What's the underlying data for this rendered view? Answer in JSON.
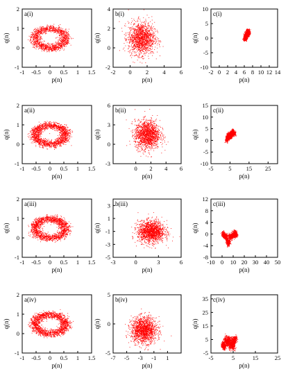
{
  "chart_data": [
    {
      "id": "a1",
      "type": "scatter",
      "panel_label": "a(i)",
      "xlabel": "p(n)",
      "ylabel": "q(n)",
      "xlim": [
        -1,
        1.5
      ],
      "ylim": [
        -1,
        2
      ],
      "xticks": [
        "-1",
        "-0.5",
        "0",
        "0.5",
        "1",
        "1.5"
      ],
      "yticks": [
        "-1",
        "0",
        "1",
        "2"
      ],
      "color": "#ff0000",
      "shape": "ring",
      "center": [
        0.0,
        0.5
      ],
      "radius": [
        0.55,
        0.5
      ],
      "points": 1500
    },
    {
      "id": "b1",
      "type": "scatter",
      "panel_label": "b(i)",
      "xlabel": "p(n)",
      "ylabel": "q(n)",
      "xlim": [
        -2,
        6
      ],
      "ylim": [
        -2,
        4
      ],
      "xticks": [
        "-2",
        "0",
        "2",
        "4",
        "6"
      ],
      "yticks": [
        "-2",
        "0",
        "2",
        "4"
      ],
      "color": "#ff0000",
      "shape": "cloud",
      "center": [
        1.3,
        1.0
      ],
      "radius": [
        1.4,
        1.5
      ],
      "points": 1500
    },
    {
      "id": "c1",
      "type": "scatter",
      "panel_label": "c(i)",
      "xlabel": "p(n)",
      "ylabel": "q(n)",
      "xlim": [
        -2,
        14
      ],
      "ylim": [
        -10,
        10
      ],
      "xticks": [
        "-2",
        "0",
        "2",
        "4",
        "6",
        "8",
        "10",
        "12",
        "14"
      ],
      "yticks": [
        "-10",
        "-5",
        "0",
        "5",
        "10"
      ],
      "color": "#ff0000",
      "shape": "walk",
      "start": [
        6,
        0
      ],
      "spread": [
        3.5,
        5
      ],
      "points": 1500
    },
    {
      "id": "a2",
      "type": "scatter",
      "panel_label": "a(ii)",
      "xlabel": "p(n)",
      "ylabel": "q(n)",
      "xlim": [
        -1,
        1.5
      ],
      "ylim": [
        -1,
        2
      ],
      "xticks": [
        "-1",
        "-0.5",
        "0",
        "0.5",
        "1",
        "1.5"
      ],
      "yticks": [
        "-1",
        "0",
        "1",
        "2"
      ],
      "color": "#ff0000",
      "shape": "ring",
      "center": [
        0.0,
        0.5
      ],
      "radius": [
        0.55,
        0.5
      ],
      "points": 1800
    },
    {
      "id": "b2",
      "type": "scatter",
      "panel_label": "b(ii)",
      "xlabel": "p(n)",
      "ylabel": "q(n)",
      "xlim": [
        -3,
        6
      ],
      "ylim": [
        -3,
        6
      ],
      "xticks": [
        "0",
        "2",
        "4",
        "6"
      ],
      "yticks": [
        "-3",
        "0",
        "3",
        "6"
      ],
      "color": "#ff0000",
      "shape": "cloud",
      "center": [
        1.5,
        1.5
      ],
      "radius": [
        1.5,
        2.0
      ],
      "points": 1600
    },
    {
      "id": "c2",
      "type": "scatter",
      "panel_label": "c(ii)",
      "xlabel": "p(n)",
      "ylabel": "q(n)",
      "xlim": [
        -5,
        30
      ],
      "ylim": [
        -10,
        15
      ],
      "xticks": [
        "-5",
        "5",
        "15",
        "25"
      ],
      "yticks": [
        "-10",
        "-5",
        "0",
        "5",
        "10",
        "15"
      ],
      "color": "#ff0000",
      "shape": "walk",
      "start": [
        3,
        0
      ],
      "spread": [
        12,
        6
      ],
      "points": 1600
    },
    {
      "id": "a3",
      "type": "scatter",
      "panel_label": "a(iii)",
      "xlabel": "p(n)",
      "ylabel": "q(n)",
      "xlim": [
        -1,
        1.5
      ],
      "ylim": [
        -1,
        2
      ],
      "xticks": [
        "-1",
        "-0.5",
        "0",
        "0.5",
        "1",
        "1.5"
      ],
      "yticks": [
        "-1",
        "0",
        "1",
        "2"
      ],
      "color": "#ff0000",
      "shape": "ring",
      "center": [
        0.0,
        0.5
      ],
      "radius": [
        0.55,
        0.5
      ],
      "points": 1800
    },
    {
      "id": "b3",
      "type": "scatter",
      "panel_label": "b(iii)",
      "xlabel": "p(n)",
      "ylabel": "q(n)",
      "xlim": [
        -3,
        6
      ],
      "ylim": [
        -5,
        4
      ],
      "xticks": [
        "-3",
        "0",
        "3",
        "6"
      ],
      "yticks": [
        "-5",
        "-3",
        "-1",
        "1",
        "3"
      ],
      "color": "#ff0000",
      "shape": "cloud",
      "center": [
        2.0,
        -1.0
      ],
      "radius": [
        1.6,
        1.5
      ],
      "points": 1600
    },
    {
      "id": "c3",
      "type": "scatter",
      "panel_label": "c(iii)",
      "xlabel": "p(n)",
      "ylabel": "q(n)",
      "xlim": [
        -10,
        50
      ],
      "ylim": [
        -8,
        12
      ],
      "xticks": [
        "-10",
        "0",
        "10",
        "20",
        "30",
        "40",
        "50"
      ],
      "yticks": [
        "-8",
        "-4",
        "0",
        "4",
        "8",
        "12"
      ],
      "color": "#ff0000",
      "shape": "walk",
      "start": [
        0,
        0
      ],
      "spread": [
        45,
        6
      ],
      "points": 1600
    },
    {
      "id": "a4",
      "type": "scatter",
      "panel_label": "a(iv)",
      "xlabel": "p(n)",
      "ylabel": "q(n)",
      "xlim": [
        -1,
        1.5
      ],
      "ylim": [
        -1,
        2
      ],
      "xticks": [
        "-1",
        "-0.5",
        "0",
        "0.5",
        "1",
        "1.5"
      ],
      "yticks": [
        "-1",
        "0",
        "1",
        "2"
      ],
      "color": "#ff0000",
      "shape": "ring",
      "center": [
        0.0,
        0.5
      ],
      "radius": [
        0.55,
        0.5
      ],
      "points": 1800
    },
    {
      "id": "b4",
      "type": "scatter",
      "panel_label": "b(iv)",
      "xlabel": "p(n)",
      "ylabel": "q(n)",
      "xlim": [
        -7,
        3
      ],
      "ylim": [
        -5,
        5
      ],
      "xticks": [
        "-7",
        "-5",
        "-3",
        "-1",
        "1"
      ],
      "yticks": [
        "-5",
        "0",
        "5"
      ],
      "color": "#ff0000",
      "shape": "cloud",
      "center": [
        -2.5,
        -1.0
      ],
      "radius": [
        1.7,
        2.0
      ],
      "points": 1600
    },
    {
      "id": "c4",
      "type": "scatter",
      "panel_label": "c(iv)",
      "xlabel": "p(n)",
      "ylabel": "q(n)",
      "xlim": [
        -5,
        25
      ],
      "ylim": [
        -5,
        38
      ],
      "xticks": [
        "-5",
        "5",
        "15",
        "25"
      ],
      "yticks": [
        "-5",
        "5",
        "15",
        "25",
        "35"
      ],
      "color": "#ff0000",
      "shape": "walk",
      "start": [
        0,
        0
      ],
      "spread": [
        18,
        32
      ],
      "points": 1600
    }
  ]
}
